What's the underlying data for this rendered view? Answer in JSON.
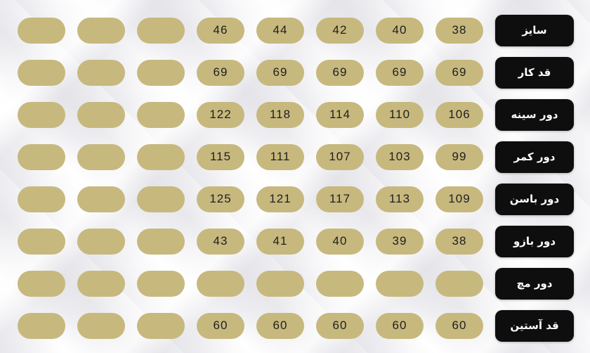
{
  "chart_data": {
    "type": "table",
    "title": "",
    "direction": "rtl",
    "header_column_side": "right",
    "note_empty_cells": "placeholder pills with no value",
    "rows": [
      {
        "label": "سایز",
        "values_ltr": [
          "",
          "",
          "",
          "46",
          "44",
          "42",
          "40",
          "38"
        ]
      },
      {
        "label": "قد کار",
        "values_ltr": [
          "",
          "",
          "",
          "69",
          "69",
          "69",
          "69",
          "69"
        ]
      },
      {
        "label": "دور سینه",
        "values_ltr": [
          "",
          "",
          "",
          "122",
          "118",
          "114",
          "110",
          "106"
        ]
      },
      {
        "label": "دور کمر",
        "values_ltr": [
          "",
          "",
          "",
          "115",
          "111",
          "107",
          "103",
          "99"
        ]
      },
      {
        "label": "دور باسن",
        "values_ltr": [
          "",
          "",
          "",
          "125",
          "121",
          "117",
          "113",
          "109"
        ]
      },
      {
        "label": "دور بازو",
        "values_ltr": [
          "",
          "",
          "",
          "43",
          "41",
          "40",
          "39",
          "38"
        ]
      },
      {
        "label": "دور مچ",
        "values_ltr": [
          "",
          "",
          "",
          "",
          "",
          "",
          "",
          ""
        ]
      },
      {
        "label": "قد آستین",
        "values_ltr": [
          "",
          "",
          "",
          "60",
          "60",
          "60",
          "60",
          "60"
        ]
      }
    ]
  },
  "colors": {
    "pill": "#c7b87e",
    "value_text": "#1f1f1f",
    "label_bg": "#0e0e0e",
    "label_text": "#ffffff",
    "background": "#f2f2f4"
  }
}
